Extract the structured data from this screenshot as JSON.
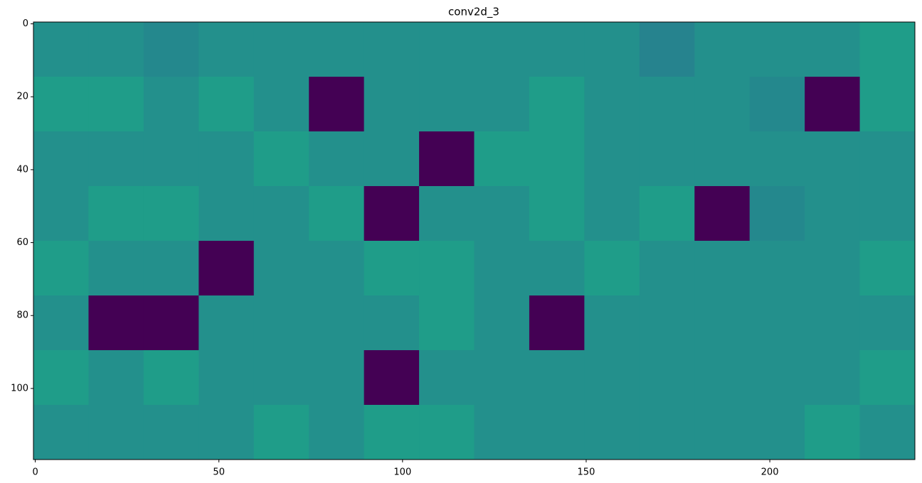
{
  "chart_data": {
    "type": "heatmap",
    "title": "conv2d_3",
    "colormap": "viridis",
    "clim": [
      0,
      1
    ],
    "xlim": [
      -0.5,
      239.5
    ],
    "ylim": [
      119.5,
      -0.5
    ],
    "xticks": [
      0,
      50,
      100,
      150,
      200
    ],
    "yticks": [
      0,
      20,
      40,
      60,
      80,
      100
    ],
    "values": [
      [
        0.5,
        0.5,
        0.47,
        0.5,
        0.5,
        0.5,
        0.5,
        0.5,
        0.5,
        0.5,
        0.5,
        0.45,
        0.5,
        0.5,
        0.5,
        0.55
      ],
      [
        0.55,
        0.55,
        0.5,
        0.55,
        0.5,
        0,
        0.5,
        0.5,
        0.5,
        0.55,
        0.5,
        0.5,
        0.5,
        0.47,
        0,
        0.55
      ],
      [
        0.5,
        0.5,
        0.5,
        0.5,
        0.55,
        0.5,
        0.5,
        0,
        0.55,
        0.55,
        0.5,
        0.5,
        0.5,
        0.5,
        0.5,
        0.5
      ],
      [
        0.5,
        0.55,
        0.55,
        0.5,
        0.5,
        0.55,
        0,
        0.5,
        0.5,
        0.55,
        0.5,
        0.55,
        0,
        0.47,
        0.5,
        0.5
      ],
      [
        0.55,
        0.5,
        0.5,
        0,
        0.5,
        0.5,
        0.55,
        0.55,
        0.5,
        0.5,
        0.55,
        0.5,
        0.5,
        0.5,
        0.5,
        0.55
      ],
      [
        0.5,
        0,
        0,
        0.5,
        0.5,
        0.5,
        0.5,
        0.55,
        0.5,
        0,
        0.5,
        0.5,
        0.5,
        0.5,
        0.5,
        0.5
      ],
      [
        0.55,
        0.5,
        0.55,
        0.5,
        0.5,
        0.5,
        0,
        0.5,
        0.5,
        0.5,
        0.5,
        0.5,
        0.5,
        0.5,
        0.5,
        0.55
      ],
      [
        0.5,
        0.5,
        0.5,
        0.5,
        0.55,
        0.5,
        0.55,
        0.55,
        0.5,
        0.5,
        0.5,
        0.5,
        0.5,
        0.5,
        0.55,
        0.5
      ]
    ]
  }
}
